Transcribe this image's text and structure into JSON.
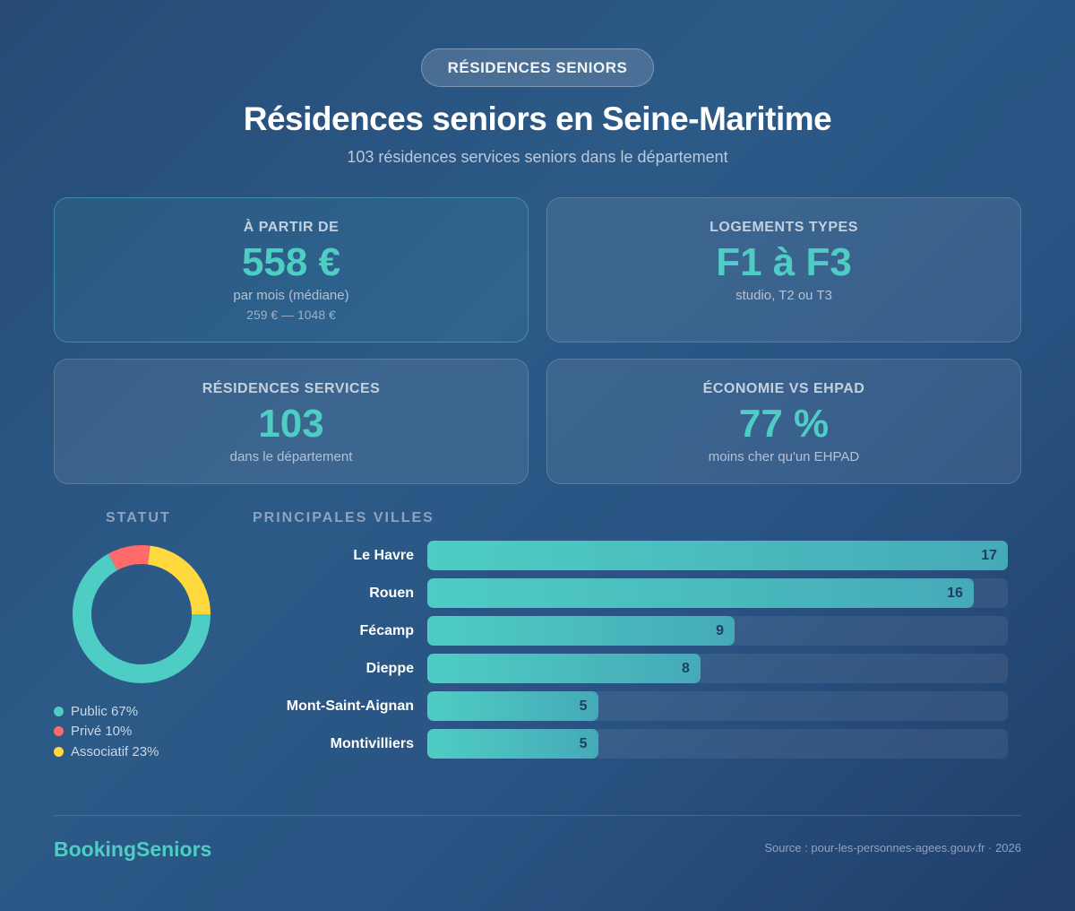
{
  "header": {
    "pill": "RÉSIDENCES SENIORS",
    "title": "Résidences seniors en Seine-Maritime",
    "subtitle": "103 résidences services seniors dans le département"
  },
  "cards": [
    {
      "label": "À PARTIR DE",
      "value": "558 €",
      "sub": "par mois (médiane)",
      "sub2": "259 € — 1048 €"
    },
    {
      "label": "LOGEMENTS TYPES",
      "value": "F1 à F3",
      "sub": "studio, T2 ou T3"
    },
    {
      "label": "RÉSIDENCES SERVICES",
      "value": "103",
      "sub": "dans le département"
    },
    {
      "label": "ÉCONOMIE VS EHPAD",
      "value": "77 %",
      "sub": "moins cher qu'un EHPAD"
    }
  ],
  "statut": {
    "heading": "STATUT",
    "legend": [
      {
        "label": "Public 67%",
        "color": "#4ecdc4"
      },
      {
        "label": "Privé 10%",
        "color": "#ff6b6b"
      },
      {
        "label": "Associatif 23%",
        "color": "#ffd93d"
      }
    ]
  },
  "villes": {
    "heading": "PRINCIPALES VILLES",
    "rows": [
      {
        "label": "Le Havre",
        "value": "17"
      },
      {
        "label": "Rouen",
        "value": "16"
      },
      {
        "label": "Fécamp",
        "value": "9"
      },
      {
        "label": "Dieppe",
        "value": "8"
      },
      {
        "label": "Mont-Saint-Aignan",
        "value": "5"
      },
      {
        "label": "Montivilliers",
        "value": "5"
      }
    ]
  },
  "footer": {
    "brand": "BookingSeniors",
    "source": "Source : pour-les-personnes-agees.gouv.fr · 2026"
  },
  "colors": {
    "accent": "#4ecdc4",
    "public": "#4ecdc4",
    "prive": "#ff6b6b",
    "associatif": "#ffd93d"
  },
  "chart_data": [
    {
      "type": "pie",
      "title": "STATUT",
      "categories": [
        "Public",
        "Privé",
        "Associatif"
      ],
      "values": [
        67,
        10,
        23
      ],
      "colors": [
        "#4ecdc4",
        "#ff6b6b",
        "#ffd93d"
      ],
      "donut": true,
      "legend_position": "bottom"
    },
    {
      "type": "bar",
      "orientation": "horizontal",
      "title": "PRINCIPALES VILLES",
      "categories": [
        "Le Havre",
        "Rouen",
        "Fécamp",
        "Dieppe",
        "Mont-Saint-Aignan",
        "Montivilliers"
      ],
      "values": [
        17,
        16,
        9,
        8,
        5,
        5
      ],
      "xlim": [
        0,
        17
      ],
      "grid": false,
      "data_labels": true
    }
  ]
}
